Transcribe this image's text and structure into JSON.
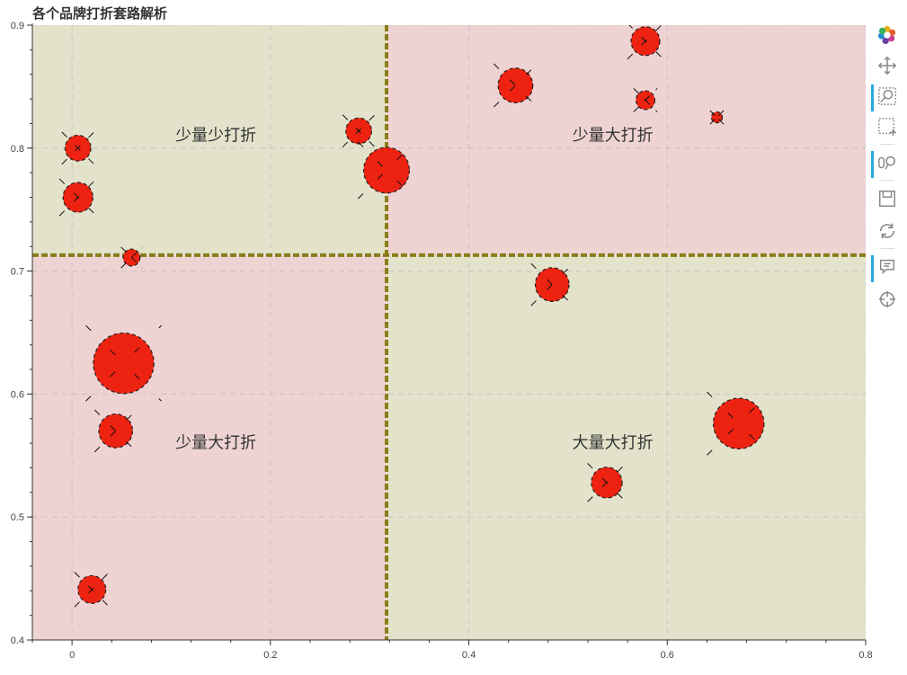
{
  "chart_data": {
    "type": "scatter",
    "title": "各个品牌打折套路解析",
    "xlim": [
      -0.04,
      0.8
    ],
    "ylim": [
      0.4,
      0.9
    ],
    "x_ticks": [
      0,
      0.2,
      0.4,
      0.6,
      0.8
    ],
    "y_ticks": [
      0.4,
      0.5,
      0.6,
      0.7,
      0.8,
      0.9
    ],
    "x_tick_labels": [
      "0",
      "0.2",
      "0.4",
      "0.6",
      "0.8"
    ],
    "y_tick_labels": [
      "0.4",
      "0.5",
      "0.6",
      "0.7",
      "0.8",
      "0.9"
    ],
    "grid": true,
    "reference_lines": {
      "x": 0.317,
      "y": 0.713
    },
    "quadrant_labels": [
      {
        "text": "少量少打折",
        "x": 0.145,
        "y": 0.806
      },
      {
        "text": "少量大打折",
        "x": 0.545,
        "y": 0.806
      },
      {
        "text": "少量大打折",
        "x": 0.145,
        "y": 0.556
      },
      {
        "text": "大量大打折",
        "x": 0.545,
        "y": 0.556
      }
    ],
    "points": [
      {
        "x": 0.006,
        "y": 0.8,
        "size": 0.26
      },
      {
        "x": 0.006,
        "y": 0.76,
        "size": 0.3
      },
      {
        "x": 0.06,
        "y": 0.711,
        "size": 0.17
      },
      {
        "x": 0.052,
        "y": 0.625,
        "size": 0.61
      },
      {
        "x": 0.044,
        "y": 0.57,
        "size": 0.34
      },
      {
        "x": 0.02,
        "y": 0.441,
        "size": 0.28
      },
      {
        "x": 0.289,
        "y": 0.814,
        "size": 0.26
      },
      {
        "x": 0.317,
        "y": 0.782,
        "size": 0.46
      },
      {
        "x": 0.447,
        "y": 0.851,
        "size": 0.35
      },
      {
        "x": 0.578,
        "y": 0.887,
        "size": 0.29
      },
      {
        "x": 0.578,
        "y": 0.839,
        "size": 0.19
      },
      {
        "x": 0.65,
        "y": 0.825,
        "size": 0.11
      },
      {
        "x": 0.484,
        "y": 0.689,
        "size": 0.34
      },
      {
        "x": 0.672,
        "y": 0.576,
        "size": 0.51
      },
      {
        "x": 0.539,
        "y": 0.528,
        "size": 0.31
      }
    ],
    "colors": {
      "point_fill": "#ee2211",
      "point_outline": "#222222",
      "quadrant_green": "#e3e3cc",
      "quadrant_pink": "#efd3d3",
      "reference_line": "#8a7d1a"
    }
  },
  "toolbar": {
    "tools": [
      {
        "name": "bokeh-logo",
        "icon": "bokeh-logo-icon",
        "active": false
      },
      {
        "name": "pan",
        "icon": "pan-icon",
        "active": false
      },
      {
        "name": "box-zoom",
        "icon": "box-zoom-icon",
        "active": true
      },
      {
        "name": "box-select",
        "icon": "box-select-icon",
        "active": false
      },
      {
        "name": "wheel-zoom",
        "icon": "wheel-zoom-icon",
        "active": true
      },
      {
        "name": "save",
        "icon": "save-icon",
        "active": false
      },
      {
        "name": "reset",
        "icon": "reset-icon",
        "active": false
      },
      {
        "name": "hover",
        "icon": "hover-icon",
        "active": true
      },
      {
        "name": "crosshair",
        "icon": "crosshair-icon",
        "active": false
      }
    ]
  }
}
